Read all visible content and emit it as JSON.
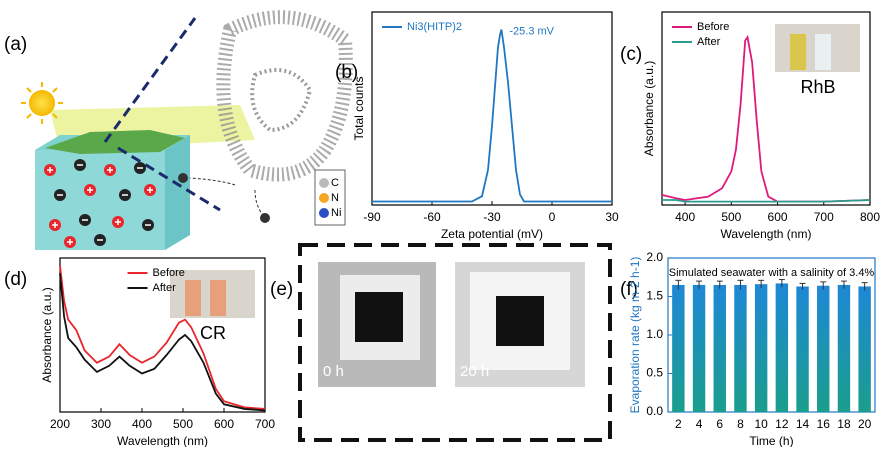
{
  "panel_labels": [
    "(a)",
    "(b)",
    "(c)",
    "(d)",
    "(e)",
    "(f)"
  ],
  "diagram": {
    "legend": [
      "C",
      "N",
      "Ni"
    ]
  },
  "photos": {
    "labels": [
      "0 h",
      "20 h"
    ]
  },
  "chart_data": [
    {
      "type": "line",
      "xlabel": "Zeta potential (mV)",
      "ylabel": "Total counts",
      "annotation": "-25.3 mV",
      "xlim": [
        -90,
        30
      ],
      "xticks": [
        -90,
        -60,
        -30,
        0,
        30
      ],
      "ylim": [
        0,
        1.1
      ],
      "legend": "upper left",
      "x": [
        -90,
        -60,
        -40,
        -35,
        -32,
        -30,
        -28,
        -27,
        -26,
        -25.3,
        -24,
        -22,
        -20,
        -18,
        -16,
        -14,
        0,
        30
      ],
      "series": [
        {
          "name": "Ni3(HITP)2",
          "color": "#1f77c4",
          "values": [
            0.02,
            0.02,
            0.02,
            0.05,
            0.2,
            0.45,
            0.75,
            0.9,
            0.97,
            1.0,
            0.9,
            0.7,
            0.45,
            0.2,
            0.06,
            0.02,
            0.02,
            0.02
          ]
        }
      ]
    },
    {
      "type": "line",
      "xlabel": "Wavelength (nm)",
      "ylabel": "Absorbance (a.u.)",
      "inset_label": "RhB",
      "xlim": [
        350,
        800
      ],
      "xticks": [
        400,
        500,
        600,
        700,
        800
      ],
      "ylim": [
        0,
        1.15
      ],
      "legend": "upper left",
      "x": [
        350,
        380,
        400,
        450,
        480,
        500,
        510,
        520,
        530,
        535,
        545,
        555,
        565,
        580,
        600,
        700,
        800
      ],
      "series": [
        {
          "name": "Before",
          "color": "#e0197d",
          "values": [
            0.06,
            0.04,
            0.03,
            0.05,
            0.1,
            0.2,
            0.33,
            0.6,
            0.98,
            1.0,
            0.85,
            0.5,
            0.2,
            0.05,
            0.02,
            0.02,
            0.03
          ]
        },
        {
          "name": "After",
          "color": "#2a9d8f",
          "values": [
            0.03,
            0.03,
            0.02,
            0.02,
            0.02,
            0.02,
            0.02,
            0.02,
            0.02,
            0.02,
            0.02,
            0.02,
            0.02,
            0.02,
            0.02,
            0.02,
            0.03
          ]
        }
      ]
    },
    {
      "type": "line",
      "xlabel": "Wavelength (nm)",
      "ylabel": "Absorbance (a.u.)",
      "inset_label": "CR",
      "xlim": [
        200,
        700
      ],
      "xticks": [
        200,
        300,
        400,
        500,
        600,
        700
      ],
      "ylim": [
        0,
        1.0
      ],
      "legend": "upper center",
      "x": [
        200,
        210,
        220,
        240,
        260,
        290,
        320,
        345,
        370,
        400,
        430,
        460,
        490,
        505,
        520,
        550,
        580,
        600,
        650,
        700
      ],
      "series": [
        {
          "name": "Before",
          "color": "#e8262b",
          "values": [
            0.95,
            0.72,
            0.6,
            0.53,
            0.4,
            0.32,
            0.36,
            0.44,
            0.37,
            0.32,
            0.36,
            0.45,
            0.58,
            0.6,
            0.55,
            0.38,
            0.15,
            0.07,
            0.03,
            0.02
          ]
        },
        {
          "name": "After",
          "color": "#111111",
          "values": [
            0.9,
            0.62,
            0.48,
            0.42,
            0.34,
            0.26,
            0.3,
            0.36,
            0.3,
            0.25,
            0.28,
            0.37,
            0.47,
            0.5,
            0.46,
            0.32,
            0.12,
            0.05,
            0.02,
            0.01
          ]
        }
      ]
    },
    {
      "type": "bar",
      "title": "Simulated seawater with a salinity of 3.4%",
      "xlabel": "Time (h)",
      "ylabel": "Evaporation rate (kg m-2 h-1)",
      "categories": [
        "2",
        "4",
        "6",
        "8",
        "10",
        "12",
        "14",
        "16",
        "18",
        "20"
      ],
      "values": [
        1.65,
        1.65,
        1.65,
        1.65,
        1.66,
        1.67,
        1.63,
        1.64,
        1.65,
        1.63
      ],
      "errors": [
        0.06,
        0.05,
        0.05,
        0.06,
        0.05,
        0.05,
        0.04,
        0.05,
        0.05,
        0.05
      ],
      "colors": [
        "#1e88d6",
        "#1a9e8c"
      ],
      "axis_color": "#1f77c4",
      "ylim": [
        0,
        2.0
      ],
      "yticks": [
        {
          "value": 0,
          "label": "0.0"
        },
        {
          "value": 0.5,
          "label": "0.5"
        },
        {
          "value": 1.0,
          "label": "1.0"
        },
        {
          "value": 1.5,
          "label": "1.5"
        },
        {
          "value": 2.0,
          "label": "2.0"
        }
      ]
    }
  ]
}
